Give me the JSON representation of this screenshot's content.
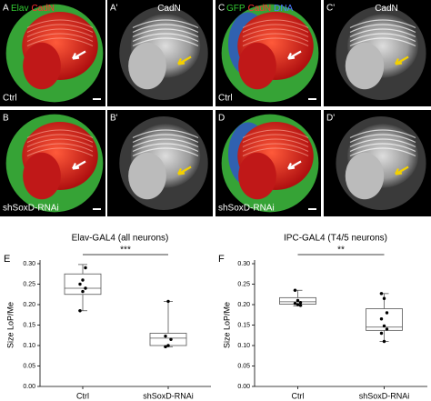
{
  "panels": [
    {
      "letter": "A",
      "labels": [
        {
          "text": "Elav",
          "color": "#33cc33"
        },
        {
          "text": "CadN",
          "color": "#ff3030"
        }
      ],
      "condition": "Ctrl"
    },
    {
      "letter": "A'",
      "labels": [
        {
          "text": "CadN",
          "color": "#ffffff"
        }
      ]
    },
    {
      "letter": "C",
      "labels": [
        {
          "text": "GFP",
          "color": "#33cc33"
        },
        {
          "text": "CadN",
          "color": "#ff3030"
        },
        {
          "text": "DNA",
          "color": "#4a78ff"
        }
      ],
      "condition": "Ctrl"
    },
    {
      "letter": "C'",
      "labels": [
        {
          "text": "CadN",
          "color": "#ffffff"
        }
      ]
    },
    {
      "letter": "B",
      "labels": [],
      "condition": "shSoxD-RNAi"
    },
    {
      "letter": "B'",
      "labels": []
    },
    {
      "letter": "D",
      "labels": [],
      "condition": "shSoxD-RNAi"
    },
    {
      "letter": "D'",
      "labels": []
    }
  ],
  "chart_data": [
    {
      "type": "box",
      "letter": "E",
      "title": "Elav-GAL4 (all neurons)",
      "y_label": "Size LoP/Me",
      "categories": [
        "Ctrl",
        "shSoxD-RNAi"
      ],
      "significance": "***",
      "boxes": [
        {
          "min": 0.185,
          "q1": 0.225,
          "median": 0.24,
          "q3": 0.275,
          "max": 0.298,
          "points": [
            0.185,
            0.232,
            0.24,
            0.25,
            0.26,
            0.29
          ]
        },
        {
          "min": 0.097,
          "q1": 0.1,
          "median": 0.118,
          "q3": 0.13,
          "max": 0.208,
          "points": [
            0.097,
            0.1,
            0.115,
            0.123,
            0.208
          ]
        }
      ],
      "ylim": [
        0,
        0.3
      ],
      "yticks": [
        {
          "value": 0,
          "label": "0.00"
        },
        0.05,
        {
          "value": 0.1,
          "label": "0.10"
        },
        0.15,
        {
          "value": 0.2,
          "label": "0.20"
        },
        0.25,
        {
          "value": 0.3,
          "label": "0.30"
        }
      ]
    },
    {
      "type": "box",
      "letter": "F",
      "title": "IPC-GAL4 (T4/5 neurons)",
      "y_label": "Size LoP/Me",
      "categories": [
        "Ctrl",
        "shSoxD-RNAi"
      ],
      "significance": "**",
      "boxes": [
        {
          "min": 0.197,
          "q1": 0.201,
          "median": 0.207,
          "q3": 0.217,
          "max": 0.235,
          "points": [
            0.235,
            0.21,
            0.205,
            0.203,
            0.2,
            0.198
          ]
        },
        {
          "min": 0.11,
          "q1": 0.137,
          "median": 0.145,
          "q3": 0.19,
          "max": 0.227,
          "points": [
            0.227,
            0.215,
            0.18,
            0.165,
            0.148,
            0.14,
            0.13,
            0.11
          ]
        }
      ],
      "ylim": [
        0,
        0.3
      ],
      "yticks": [
        {
          "value": 0,
          "label": "0.00"
        },
        0.05,
        {
          "value": 0.1,
          "label": "0.10"
        },
        0.15,
        {
          "value": 0.2,
          "label": "0.20"
        },
        0.25,
        {
          "value": 0.3,
          "label": "0.30"
        }
      ]
    }
  ]
}
